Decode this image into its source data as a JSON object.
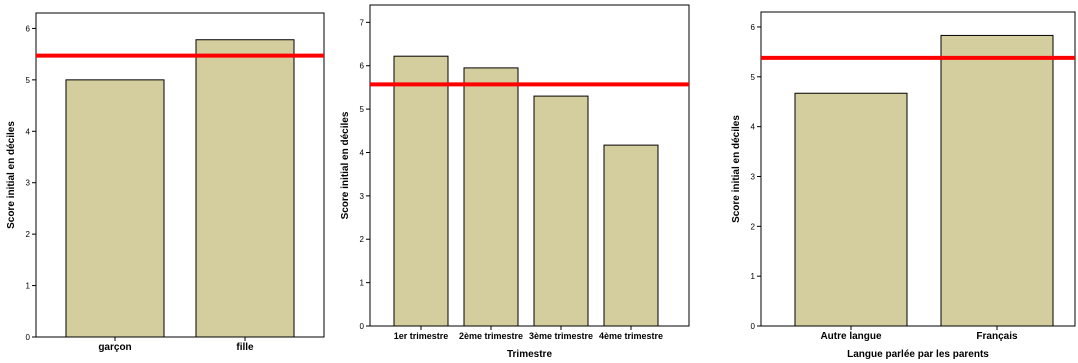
{
  "chart_data": [
    {
      "type": "bar",
      "categories": [
        "garçon",
        "fille"
      ],
      "values": [
        5.0,
        5.78
      ],
      "xlabel": "",
      "ylabel": "Score initial en déciles",
      "ylim": [
        0,
        6.3
      ],
      "yticks": [
        "0",
        "1",
        "2",
        "3",
        "4",
        "5",
        "6"
      ],
      "reference_line": 5.47,
      "bar_color": "#d4ce9e",
      "reference_line_color": "#ff0000",
      "grid": false
    },
    {
      "type": "bar",
      "categories": [
        "1er trimestre",
        "2ème trimestre",
        "3ème trimestre",
        "4ème trimestre"
      ],
      "values": [
        6.22,
        5.95,
        5.3,
        4.17
      ],
      "xlabel": "Trimestre",
      "ylabel": "Score initial en déciles",
      "ylim": [
        0,
        7.4
      ],
      "yticks": [
        "0",
        "1",
        "2",
        "3",
        "4",
        "5",
        "6",
        "7"
      ],
      "reference_line": 5.57,
      "bar_color": "#d4ce9e",
      "reference_line_color": "#ff0000",
      "grid": false
    },
    {
      "type": "bar",
      "categories": [
        "Autre langue",
        "Français"
      ],
      "values": [
        4.67,
        5.83
      ],
      "xlabel": "Langue parlée par les parents",
      "ylabel": "Score initial en déciles",
      "ylim": [
        0,
        6.3
      ],
      "yticks": [
        "0",
        "1",
        "2",
        "3",
        "4",
        "5",
        "6"
      ],
      "reference_line": 5.38,
      "bar_color": "#d4ce9e",
      "reference_line_color": "#ff0000",
      "grid": false
    }
  ]
}
